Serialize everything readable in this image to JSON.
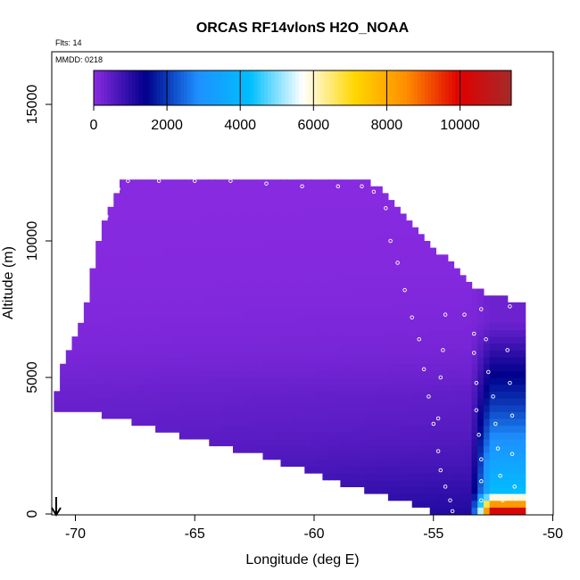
{
  "chart_data": {
    "type": "heatmap",
    "title": "ORCAS RF14vlonS H2O_NOAA",
    "flights_label": "Flts: 14",
    "mmdd_label": "MMDD: 0218",
    "xlabel": "Longitude (deg E)",
    "ylabel": "Altitude (m)",
    "xlim": [
      -71,
      -50
    ],
    "ylim": [
      0,
      16700
    ],
    "x_ticks": [
      -70,
      -65,
      -60,
      -55,
      -50
    ],
    "x_tick_labels": [
      "-70",
      "-65",
      "-60",
      "-55",
      "-50"
    ],
    "y_ticks": [
      0,
      5000,
      10000,
      15000
    ],
    "y_tick_labels": [
      "0",
      "5000",
      "10000",
      "15000"
    ],
    "colorbar": {
      "range": [
        0,
        11400
      ],
      "ticks": [
        0,
        2000,
        4000,
        6000,
        8000,
        10000
      ],
      "tick_labels": [
        "0",
        "2000",
        "4000",
        "6000",
        "8000",
        "10000"
      ],
      "colors": [
        "#8a2be2",
        "#00008b",
        "#1e90ff",
        "#00bfff",
        "#ffffff",
        "#ffd700",
        "#ff8c00",
        "#e00000",
        "#a52a2a"
      ]
    },
    "cell_width_deg": 0.25,
    "cell_height_m": 250,
    "grid": false,
    "colors": {
      "points": "#ffffff",
      "arrow": "#000000"
    },
    "top_boundary": [
      [
        -70.8,
        4400
      ],
      [
        -70.5,
        5400
      ],
      [
        -70.0,
        6300
      ],
      [
        -69.5,
        7700
      ],
      [
        -69.2,
        9300
      ],
      [
        -68.8,
        10700
      ],
      [
        -68.2,
        11900
      ],
      [
        -67.8,
        12200
      ],
      [
        -58.0,
        12200
      ],
      [
        -57.0,
        11600
      ],
      [
        -56.0,
        10700
      ],
      [
        -55.0,
        9700
      ],
      [
        -54.0,
        8800
      ],
      [
        -53.0,
        8000
      ],
      [
        -51.3,
        7600
      ]
    ],
    "bottom_boundary": [
      [
        -70.8,
        4000
      ],
      [
        -69.0,
        3800
      ],
      [
        -66.0,
        3100
      ],
      [
        -62.0,
        2200
      ],
      [
        -59.0,
        1300
      ],
      [
        -57.0,
        800
      ],
      [
        -55.5,
        400
      ],
      [
        -54.5,
        0
      ],
      [
        -51.8,
        0
      ]
    ],
    "regimes": [
      {
        "name": "main",
        "lon": [
          -70.9,
          -51.3
        ],
        "points": [
          [
            0,
            8
          ],
          [
            1000,
            6.5
          ],
          [
            2000,
            5
          ],
          [
            3000,
            4
          ],
          [
            4500,
            3
          ],
          [
            6000,
            1.5
          ],
          [
            8500,
            0.6
          ],
          [
            12500,
            0.2
          ]
        ]
      },
      {
        "name": "east",
        "lon": [
          -52.8,
          -51.5
        ],
        "points": [
          [
            0,
            11000
          ],
          [
            300,
            9000
          ],
          [
            800,
            4200
          ],
          [
            2000,
            3400
          ],
          [
            4000,
            2000
          ],
          [
            5500,
            1200
          ],
          [
            7000,
            300
          ]
        ]
      }
    ],
    "flight_track": [
      [
        -68.7,
        10900
      ],
      [
        -68.5,
        11400
      ],
      [
        -68.2,
        11900
      ],
      [
        -67.8,
        12200
      ],
      [
        -66.5,
        12200
      ],
      [
        -65.0,
        12200
      ],
      [
        -63.5,
        12200
      ],
      [
        -62.0,
        12100
      ],
      [
        -60.5,
        12000
      ],
      [
        -59.0,
        12000
      ],
      [
        -58.0,
        12000
      ],
      [
        -57.5,
        11800
      ],
      [
        -57.0,
        11200
      ],
      [
        -56.8,
        10000
      ],
      [
        -56.5,
        9200
      ],
      [
        -56.2,
        8200
      ],
      [
        -55.9,
        7200
      ],
      [
        -55.6,
        6400
      ],
      [
        -55.4,
        5300
      ],
      [
        -55.2,
        4300
      ],
      [
        -55.0,
        3300
      ],
      [
        -54.8,
        2300
      ],
      [
        -54.7,
        1600
      ],
      [
        -54.5,
        1000
      ],
      [
        -54.3,
        500
      ],
      [
        -54.2,
        100
      ],
      [
        -54.5,
        7300
      ],
      [
        -54.6,
        6000
      ],
      [
        -54.7,
        5000
      ],
      [
        -54.8,
        3500
      ],
      [
        -53.7,
        7300
      ],
      [
        -53.3,
        6600
      ],
      [
        -53.3,
        5900
      ],
      [
        -53.2,
        4800
      ],
      [
        -53.2,
        3800
      ],
      [
        -53.1,
        2900
      ],
      [
        -53.0,
        2000
      ],
      [
        -53.0,
        1200
      ],
      [
        -53.0,
        500
      ],
      [
        -53.0,
        7500
      ],
      [
        -52.8,
        6400
      ],
      [
        -52.7,
        5200
      ],
      [
        -52.5,
        4300
      ],
      [
        -52.4,
        3300
      ],
      [
        -52.3,
        2400
      ],
      [
        -52.2,
        1400
      ],
      [
        -52.1,
        500
      ],
      [
        -51.8,
        7600
      ],
      [
        -51.9,
        6000
      ],
      [
        -51.8,
        4800
      ],
      [
        -51.7,
        3600
      ],
      [
        -51.7,
        2200
      ],
      [
        -51.6,
        1000
      ]
    ]
  }
}
